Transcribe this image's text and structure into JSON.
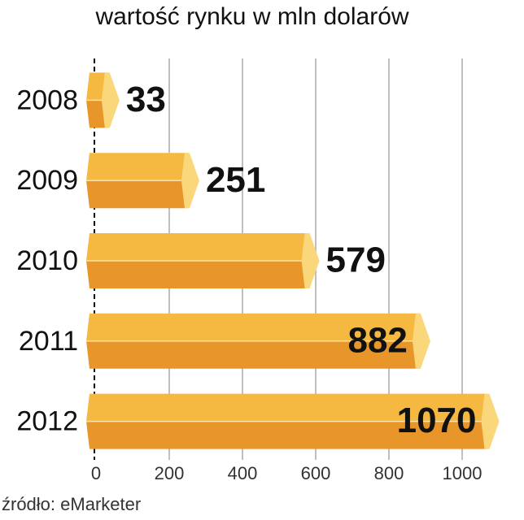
{
  "chart_data": {
    "type": "bar",
    "orientation": "horizontal",
    "title": "wartość rynku w mln dolarów",
    "categories": [
      "2008",
      "2009",
      "2010",
      "2011",
      "2012"
    ],
    "values": [
      33,
      251,
      579,
      882,
      1070
    ],
    "color": "#f0a935",
    "xlim": [
      0,
      1000
    ],
    "xticks": [
      0,
      200,
      400,
      600,
      800,
      1000
    ],
    "grid": true,
    "source": "źródło: eMarketer"
  }
}
